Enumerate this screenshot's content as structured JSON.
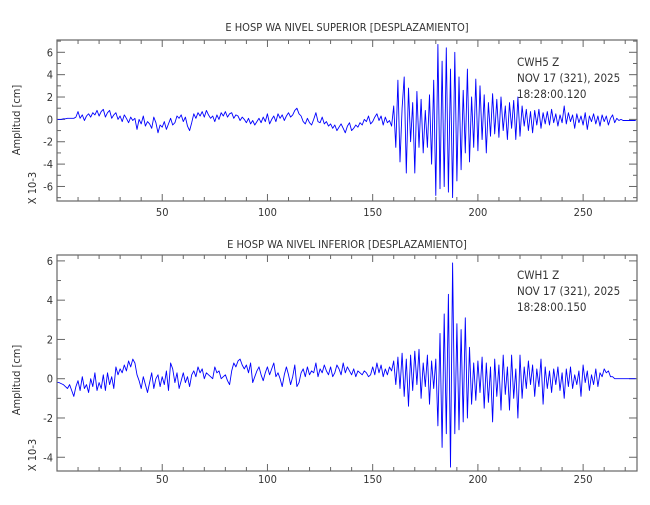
{
  "chart_data": [
    {
      "type": "line",
      "title": "E HOSP WA NIVEL SUPERIOR [DESPLAZAMIENTO]",
      "ylabel": "Amplitud [cm]",
      "yscale_label": "X 10-3",
      "xlabel": "",
      "xlim": [
        0,
        275.6
      ],
      "ylim": [
        -7.3,
        7.1
      ],
      "xticks": [
        50,
        100,
        150,
        200,
        250
      ],
      "yticks": [
        -6,
        -4,
        -2,
        0,
        2,
        4,
        6
      ],
      "annotation": [
        "CWH5   Z",
        "NOV 17 (321), 2025",
        "18:28:00.120"
      ],
      "line_color": "#0000ff",
      "grid": false,
      "x0": 0,
      "dx": 1,
      "values": [
        0,
        0,
        0,
        0.05,
        0.05,
        0.1,
        0.1,
        0.1,
        0.1,
        0.2,
        0.7,
        0.1,
        0.4,
        -0.1,
        0.3,
        0.5,
        0.2,
        0.6,
        0.4,
        0.8,
        0.3,
        0.7,
        0.9,
        0.2,
        0.6,
        0.8,
        0.1,
        0.4,
        0.6,
        0.0,
        0.3,
        -0.2,
        0.4,
        0.1,
        -0.3,
        0.2,
        -0.1,
        0.1,
        -0.9,
        0.0,
        -0.4,
        0.3,
        -0.6,
        -0.2,
        -0.4,
        -0.8,
        0.2,
        -0.3,
        -1.2,
        -0.5,
        -0.7,
        -0.2,
        -0.9,
        -0.4,
        0.1,
        -0.5,
        -0.3,
        0.3,
        0.1,
        0.4,
        -0.2,
        0.2,
        -0.6,
        -1.0,
        -0.3,
        0.5,
        0.1,
        0.6,
        0.3,
        0.7,
        0.2,
        0.8,
        0.4,
        0.1,
        0.3,
        -0.2,
        0.4,
        0.0,
        0.6,
        0.3,
        0.7,
        0.2,
        0.5,
        0.6,
        0.1,
        0.4,
        0.3,
        -0.1,
        0.2,
        0.0,
        -0.3,
        0.1,
        -0.4,
        -0.1,
        -0.5,
        -0.2,
        0.1,
        -0.3,
        0.2,
        -0.2,
        0.5,
        -0.4,
        0.0,
        0.3,
        -0.2,
        0.5,
        0.1,
        0.4,
        -0.1,
        0.3,
        0.6,
        0.2,
        0.4,
        0.8,
        1.0,
        0.5,
        0.3,
        -0.2,
        -0.4,
        0.1,
        -0.3,
        -0.5,
        0.0,
        0.6,
        -0.2,
        -0.3,
        0.2,
        -0.4,
        -0.2,
        -0.6,
        -0.4,
        -0.8,
        -0.5,
        -1.0,
        -0.7,
        -0.4,
        -0.8,
        -1.2,
        -0.6,
        -0.3,
        -1.0,
        -0.8,
        -0.5,
        -0.7,
        -0.3,
        -0.5,
        0.0,
        -0.2,
        0.3,
        -0.4,
        -0.2,
        0.2,
        0.5,
        -0.1,
        0.3,
        -0.5,
        0.2,
        -0.3,
        -0.1,
        -0.6,
        1.2,
        -2.5,
        3.5,
        -3.8,
        1.0,
        3.8,
        -4.8,
        2.8,
        -2.0,
        1.5,
        -4.8,
        2.5,
        -2.5,
        1.8,
        -3.0,
        0.8,
        -2.5,
        2.2,
        -4.0,
        3.5,
        -6.8,
        6.7,
        -6.2,
        5.2,
        -6.0,
        6.4,
        -6.5,
        4.5,
        -7.0,
        6.0,
        -5.5,
        3.8,
        -4.5,
        2.6,
        -3.0,
        4.5,
        -3.8,
        2.0,
        -2.5,
        3.6,
        -2.8,
        3.0,
        -1.8,
        2.2,
        -3.0,
        1.5,
        -1.5,
        2.3,
        -1.3,
        1.8,
        -1.6,
        2.0,
        -1.0,
        1.2,
        -1.8,
        1.5,
        -0.8,
        1.7,
        -1.8,
        2.0,
        -1.5,
        1.2,
        -0.6,
        0.9,
        -1.0,
        0.7,
        -1.2,
        0.8,
        -0.5,
        0.9,
        -0.8,
        0.6,
        -0.4,
        0.7,
        -0.5,
        0.9,
        -0.3,
        0.5,
        -0.6,
        0.4,
        -0.3,
        1.2,
        -0.4,
        0.6,
        -0.2,
        0.4,
        -0.8,
        0.5,
        -0.3,
        0.3,
        -0.5,
        0.6,
        -0.9,
        0.3,
        -0.2,
        0.5,
        -0.4,
        0.3,
        -0.6,
        0.4,
        -0.2,
        0.3,
        -0.5,
        0.1,
        0.4,
        -0.3,
        0.1,
        -0.1,
        0.0,
        -0.1,
        -0.1,
        -0.1,
        -0.1,
        -0.1,
        -0.1,
        -0.1
      ]
    },
    {
      "type": "line",
      "title": "E HOSP WA NIVEL INFERIOR [DESPLAZAMIENTO]",
      "ylabel": "Amplitud [cm]",
      "yscale_label": "X 10-3",
      "xlabel": "",
      "xlim": [
        0,
        275.6
      ],
      "ylim": [
        -4.7,
        6.3
      ],
      "xticks": [
        50,
        100,
        150,
        200,
        250
      ],
      "yticks": [
        -4,
        -2,
        0,
        2,
        4,
        6
      ],
      "annotation": [
        "CWH1   Z",
        "NOV 17 (321), 2025",
        "18:28:00.150"
      ],
      "line_color": "#0000ff",
      "grid": false,
      "x0": 0,
      "dx": 1,
      "values": [
        -0.2,
        -0.2,
        -0.25,
        -0.3,
        -0.4,
        -0.5,
        -0.3,
        -0.6,
        -0.9,
        -0.4,
        -0.1,
        -0.6,
        0.1,
        -0.5,
        -0.3,
        -0.7,
        0.0,
        -0.4,
        0.3,
        -0.6,
        -0.2,
        -0.5,
        0.2,
        -0.6,
        0.3,
        -0.3,
        0.1,
        -0.5,
        0.6,
        0.2,
        0.5,
        0.3,
        0.7,
        0.4,
        0.9,
        0.6,
        1.0,
        0.8,
        0.2,
        -0.1,
        -0.5,
        0.1,
        -0.3,
        -0.7,
        -0.2,
        0.3,
        -0.5,
        0.0,
        0.2,
        -0.4,
        0.1,
        -0.3,
        0.4,
        -0.6,
        0.8,
        0.5,
        -0.2,
        0.3,
        -0.5,
        -0.1,
        0.3,
        -0.2,
        0.1,
        -0.4,
        0.2,
        0.4,
        0.1,
        0.6,
        0.3,
        0.5,
        0.0,
        0.3,
        0.2,
        0.1,
        0.0,
        0.6,
        0.3,
        0.4,
        0.0,
        0.1,
        0.2,
        -0.1,
        -0.3,
        0.4,
        0.8,
        0.6,
        0.9,
        1.0,
        0.7,
        0.5,
        0.7,
        0.3,
        0.8,
        -0.2,
        0.1,
        0.4,
        0.6,
        0.2,
        -0.1,
        0.3,
        0.6,
        0.2,
        0.5,
        0.8,
        0.1,
        0.3,
        0.0,
        -0.4,
        0.2,
        0.6,
        0.2,
        -0.3,
        0.1,
        0.7,
        -0.4,
        -0.2,
        0.3,
        0.5,
        0.1,
        0.6,
        0.2,
        0.4,
        0.3,
        0.8,
        0.1,
        0.5,
        0.3,
        0.7,
        0.4,
        0.2,
        0.6,
        0.1,
        0.3,
        0.7,
        0.5,
        0.2,
        0.8,
        0.3,
        0.6,
        0.4,
        0.2,
        0.5,
        0.1,
        0.4,
        0.3,
        0.2,
        0.4,
        0.3,
        0.1,
        0.2,
        0.6,
        0.2,
        0.8,
        0.3,
        0.7,
        0.1,
        0.5,
        0.2,
        0.6,
        0.4,
        0.9,
        -0.3,
        1.1,
        -0.5,
        1.3,
        -0.9,
        1.0,
        -1.4,
        1.2,
        -0.6,
        1.4,
        -0.3,
        1.5,
        -1.0,
        0.8,
        -0.4,
        1.2,
        -1.3,
        0.9,
        -0.5,
        1.0,
        -2.4,
        2.3,
        -3.5,
        3.3,
        -2.8,
        4.3,
        -4.5,
        5.9,
        -2.8,
        2.8,
        -2.6,
        2.5,
        -2.2,
        3.1,
        -2.0,
        1.6,
        -1.3,
        0.8,
        -1.1,
        0.9,
        -0.7,
        1.1,
        -1.5,
        0.8,
        -1.2,
        0.6,
        -2.2,
        1.0,
        -0.9,
        0.7,
        -1.6,
        1.2,
        -0.8,
        0.6,
        -1.6,
        1.2,
        -1.0,
        0.5,
        -2.0,
        1.2,
        -1.0,
        0.6,
        -0.5,
        0.9,
        -0.3,
        0.7,
        -0.9,
        0.5,
        -0.4,
        1.0,
        -1.3,
        0.6,
        -0.5,
        0.4,
        -0.7,
        0.5,
        -0.3,
        0.6,
        -0.6,
        0.3,
        -1.0,
        0.5,
        -0.4,
        0.6,
        -0.5,
        0.2,
        -0.3,
        0.4,
        -0.9,
        0.7,
        -0.2,
        0.4,
        -0.6,
        0.2,
        -0.3,
        0.5,
        -0.4,
        0.3,
        0.1,
        0.5,
        0.3,
        0.4,
        0.1,
        0.1,
        0.0,
        0.0,
        0.0,
        0.0,
        0.0,
        0.0,
        0.0,
        0.0,
        0.0,
        0.0,
        0.0
      ]
    }
  ]
}
